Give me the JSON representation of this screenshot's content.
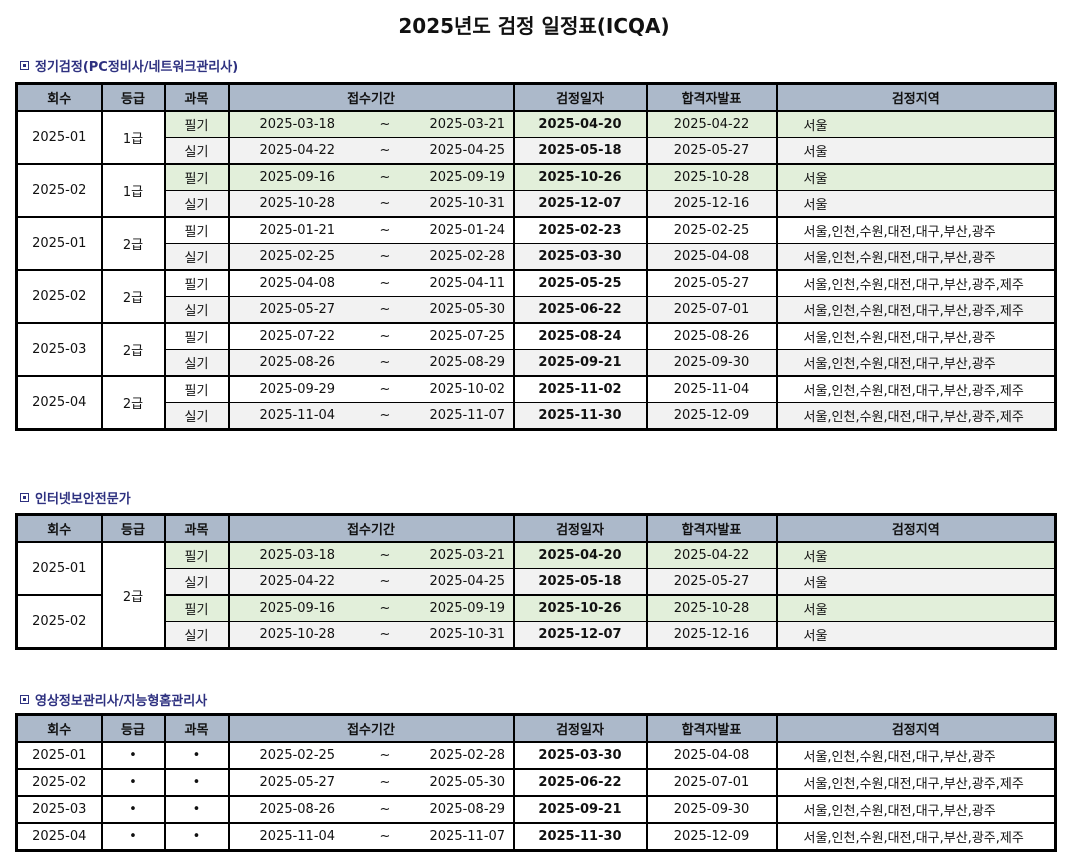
{
  "title": "2025년도 검정 일정표(ICQA)",
  "headers": [
    "회수",
    "등급",
    "과목",
    "접수기간",
    "검정일자",
    "합격자발표",
    "검정지역"
  ],
  "colors": {
    "header": "#acb9ca",
    "written_row": "#e2efda",
    "practical_row": "#f2f2f2",
    "section_title": "#2e3180"
  },
  "sections": [
    {
      "title": "정기검정(PC정비사/네트워크관리사)",
      "layout": "pairs",
      "groups": [
        {
          "round": "2025-01",
          "grade": "1급",
          "items": [
            {
              "subject": "필기",
              "start": "2025-03-18",
              "tilde": "~",
              "end": "2025-03-21",
              "exam": "2025-04-20",
              "announce": "2025-04-22",
              "region": "서울",
              "bg": "g"
            },
            {
              "subject": "실기",
              "start": "2025-04-22",
              "tilde": "~",
              "end": "2025-04-25",
              "exam": "2025-05-18",
              "announce": "2025-05-27",
              "region": "서울",
              "bg": "s"
            }
          ]
        },
        {
          "round": "2025-02",
          "grade": "1급",
          "items": [
            {
              "subject": "필기",
              "start": "2025-09-16",
              "tilde": "~",
              "end": "2025-09-19",
              "exam": "2025-10-26",
              "announce": "2025-10-28",
              "region": "서울",
              "bg": "g"
            },
            {
              "subject": "실기",
              "start": "2025-10-28",
              "tilde": "~",
              "end": "2025-10-31",
              "exam": "2025-12-07",
              "announce": "2025-12-16",
              "region": "서울",
              "bg": "s"
            }
          ]
        },
        {
          "round": "2025-01",
          "grade": "2급",
          "items": [
            {
              "subject": "필기",
              "start": "2025-01-21",
              "tilde": "~",
              "end": "2025-01-24",
              "exam": "2025-02-23",
              "announce": "2025-02-25",
              "region": "서울,인천,수원,대전,대구,부산,광주",
              "bg": "w"
            },
            {
              "subject": "실기",
              "start": "2025-02-25",
              "tilde": "~",
              "end": "2025-02-28",
              "exam": "2025-03-30",
              "announce": "2025-04-08",
              "region": "서울,인천,수원,대전,대구,부산,광주",
              "bg": "s"
            }
          ]
        },
        {
          "round": "2025-02",
          "grade": "2급",
          "items": [
            {
              "subject": "필기",
              "start": "2025-04-08",
              "tilde": "~",
              "end": "2025-04-11",
              "exam": "2025-05-25",
              "announce": "2025-05-27",
              "region": "서울,인천,수원,대전,대구,부산,광주,제주",
              "bg": "w"
            },
            {
              "subject": "실기",
              "start": "2025-05-27",
              "tilde": "~",
              "end": "2025-05-30",
              "exam": "2025-06-22",
              "announce": "2025-07-01",
              "region": "서울,인천,수원,대전,대구,부산,광주,제주",
              "bg": "s"
            }
          ]
        },
        {
          "round": "2025-03",
          "grade": "2급",
          "items": [
            {
              "subject": "필기",
              "start": "2025-07-22",
              "tilde": "~",
              "end": "2025-07-25",
              "exam": "2025-08-24",
              "announce": "2025-08-26",
              "region": "서울,인천,수원,대전,대구,부산,광주",
              "bg": "w"
            },
            {
              "subject": "실기",
              "start": "2025-08-26",
              "tilde": "~",
              "end": "2025-08-29",
              "exam": "2025-09-21",
              "announce": "2025-09-30",
              "region": "서울,인천,수원,대전,대구,부산,광주",
              "bg": "s"
            }
          ]
        },
        {
          "round": "2025-04",
          "grade": "2급",
          "items": [
            {
              "subject": "필기",
              "start": "2025-09-29",
              "tilde": "~",
              "end": "2025-10-02",
              "exam": "2025-11-02",
              "announce": "2025-11-04",
              "region": "서울,인천,수원,대전,대구,부산,광주,제주",
              "bg": "w"
            },
            {
              "subject": "실기",
              "start": "2025-11-04",
              "tilde": "~",
              "end": "2025-11-07",
              "exam": "2025-11-30",
              "announce": "2025-12-09",
              "region": "서울,인천,수원,대전,대구,부산,광주,제주",
              "bg": "s"
            }
          ]
        }
      ]
    },
    {
      "title": "인터넷보안전문가",
      "layout": "shared-grade",
      "grade": "2급",
      "groups": [
        {
          "round": "2025-01",
          "items": [
            {
              "subject": "필기",
              "start": "2025-03-18",
              "tilde": "~",
              "end": "2025-03-21",
              "exam": "2025-04-20",
              "announce": "2025-04-22",
              "region": "서울",
              "bg": "g"
            },
            {
              "subject": "실기",
              "start": "2025-04-22",
              "tilde": "~",
              "end": "2025-04-25",
              "exam": "2025-05-18",
              "announce": "2025-05-27",
              "region": "서울",
              "bg": "s"
            }
          ]
        },
        {
          "round": "2025-02",
          "items": [
            {
              "subject": "필기",
              "start": "2025-09-16",
              "tilde": "~",
              "end": "2025-09-19",
              "exam": "2025-10-26",
              "announce": "2025-10-28",
              "region": "서울",
              "bg": "g"
            },
            {
              "subject": "실기",
              "start": "2025-10-28",
              "tilde": "~",
              "end": "2025-10-31",
              "exam": "2025-12-07",
              "announce": "2025-12-16",
              "region": "서울",
              "bg": "s"
            }
          ]
        }
      ]
    },
    {
      "title": "영상정보관리사/지능형홈관리사",
      "layout": "single",
      "groups": [
        {
          "round": "2025-01",
          "grade": "•",
          "items": [
            {
              "subject": "•",
              "start": "2025-02-25",
              "tilde": "~",
              "end": "2025-02-28",
              "exam": "2025-03-30",
              "announce": "2025-04-08",
              "region": "서울,인천,수원,대전,대구,부산,광주",
              "bg": "w"
            }
          ]
        },
        {
          "round": "2025-02",
          "grade": "•",
          "items": [
            {
              "subject": "•",
              "start": "2025-05-27",
              "tilde": "~",
              "end": "2025-05-30",
              "exam": "2025-06-22",
              "announce": "2025-07-01",
              "region": "서울,인천,수원,대전,대구,부산,광주,제주",
              "bg": "w"
            }
          ]
        },
        {
          "round": "2025-03",
          "grade": "•",
          "items": [
            {
              "subject": "•",
              "start": "2025-08-26",
              "tilde": "~",
              "end": "2025-08-29",
              "exam": "2025-09-21",
              "announce": "2025-09-30",
              "region": "서울,인천,수원,대전,대구,부산,광주",
              "bg": "w"
            }
          ]
        },
        {
          "round": "2025-04",
          "grade": "•",
          "items": [
            {
              "subject": "•",
              "start": "2025-11-04",
              "tilde": "~",
              "end": "2025-11-07",
              "exam": "2025-11-30",
              "announce": "2025-12-09",
              "region": "서울,인천,수원,대전,대구,부산,광주,제주",
              "bg": "w"
            }
          ]
        }
      ]
    }
  ]
}
